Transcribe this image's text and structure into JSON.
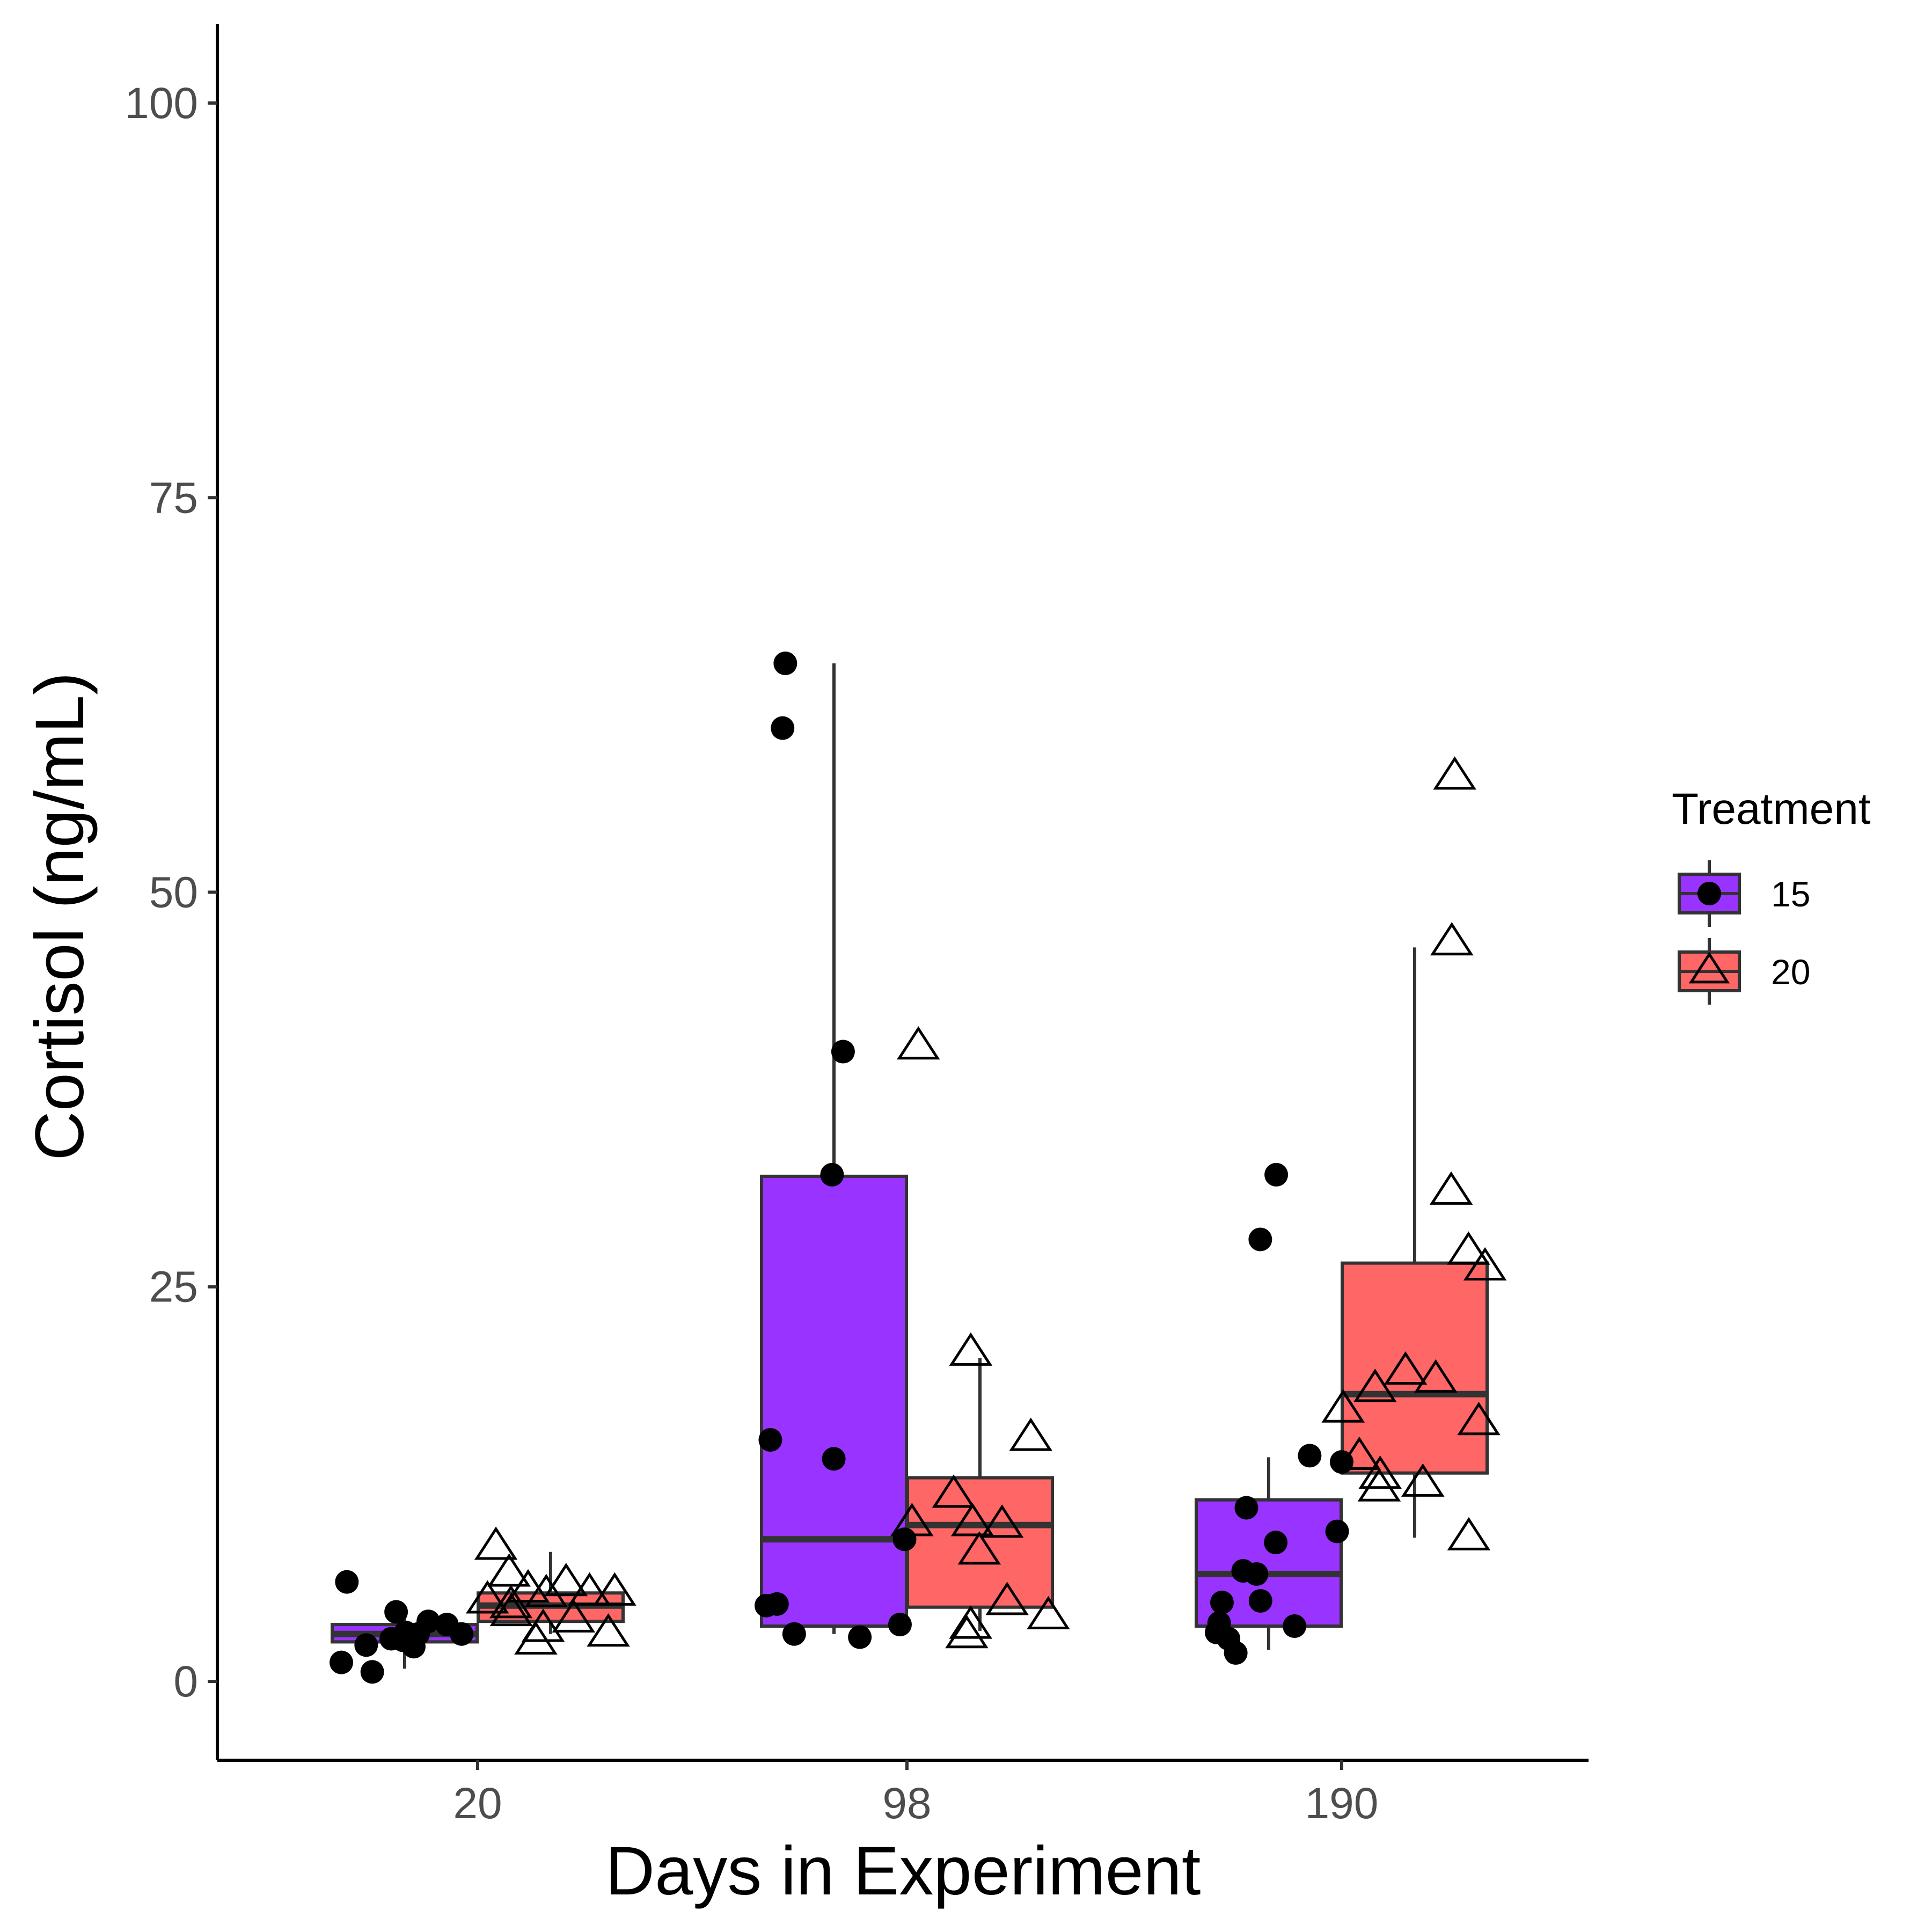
{
  "chart_data": {
    "type": "box",
    "xlabel": "Days in Experiment",
    "ylabel": "Cortisol (ng/mL)",
    "ylim": [
      -5,
      105
    ],
    "yticks": [
      0,
      25,
      50,
      75,
      100
    ],
    "categories": [
      "20",
      "98",
      "190"
    ],
    "legend": {
      "title": "Treatment",
      "position": "right"
    },
    "series": [
      {
        "name": "15",
        "color": "#9933FF",
        "marker": "filled-circle",
        "boxes": [
          {
            "category": "20",
            "min": 0.8,
            "q1": 2.5,
            "median": 3.0,
            "q3": 3.6,
            "max": 4.5
          },
          {
            "category": "98",
            "min": 3.0,
            "q1": 3.5,
            "median": 9.0,
            "q3": 32.0,
            "max": 64.5
          },
          {
            "category": "190",
            "min": 2.0,
            "q1": 3.5,
            "median": 6.8,
            "q3": 11.5,
            "max": 14.2
          }
        ],
        "points": [
          {
            "category": "20",
            "values": [
              2.6,
              2.2,
              6.3,
              2.3,
              4.4,
              3.1,
              1.2,
              3.0,
              3.0,
              2.7,
              0.6,
              3.6,
              3.8
            ]
          },
          {
            "category": "98",
            "values": [
              15.3,
              14.1,
              3.0,
              2.8,
              60.4,
              39.9,
              32.1,
              64.5,
              4.8,
              3.6,
              9.0,
              4.9
            ]
          },
          {
            "category": "190",
            "values": [
              28.0,
              9.5,
              5.0,
              6.8,
              32.1,
              3.5,
              1.8,
              3.7,
              13.9,
              5.1,
              2.7,
              8.8,
              7.0,
              3.1,
              14.3,
              11.0
            ]
          }
        ]
      },
      {
        "name": "20",
        "color": "#FF6666",
        "marker": "open-triangle",
        "boxes": [
          {
            "category": "20",
            "min": 3.0,
            "q1": 3.8,
            "median": 4.8,
            "q3": 5.6,
            "max": 8.2
          },
          {
            "category": "98",
            "min": 3.2,
            "q1": 4.7,
            "median": 9.9,
            "q3": 12.9,
            "max": 20.5
          },
          {
            "category": "190",
            "min": 9.1,
            "q1": 13.2,
            "median": 18.2,
            "q3": 26.5,
            "max": 46.5
          }
        ],
        "points": [
          {
            "category": "20",
            "values": [
              5.8,
              5.1,
              5.6,
              4.3,
              3.0,
              5.5,
              4.8,
              6.2,
              2.5,
              5.6,
              3.9,
              8.5,
              6.8,
              3.3
            ]
          },
          {
            "category": "98",
            "values": [
              40.2,
              10.0,
              2.9,
              5.0,
              9.9,
              4.1,
              11.8,
              3.5,
              8.2,
              20.8,
              15.4,
              10.0
            ]
          },
          {
            "category": "190",
            "values": [
              19.6,
              12.2,
              18.5,
              31.0,
              14.2,
              13.0,
              57.3,
              27.2,
              26.2,
              16.4,
              9.1,
              46.8,
              19.1,
              12.5,
              17.2
            ]
          }
        ]
      }
    ]
  }
}
